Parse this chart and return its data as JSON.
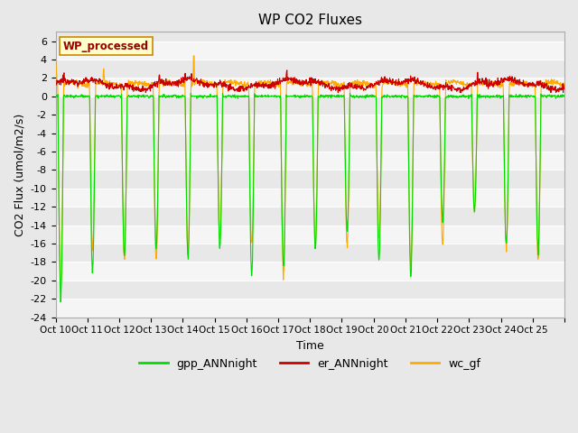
{
  "title": "WP CO2 Fluxes",
  "xlabel": "Time",
  "ylabel": "CO2 Flux (umol/m2/s)",
  "ylim": [
    -24,
    7
  ],
  "yticks": [
    -24,
    -22,
    -20,
    -18,
    -16,
    -14,
    -12,
    -10,
    -8,
    -6,
    -4,
    -2,
    0,
    2,
    4,
    6
  ],
  "fig_facecolor": "#e8e8e8",
  "plot_bg_color": "#e8e8e8",
  "band_color": "#f5f5f5",
  "gpp_color": "#00dd00",
  "er_color": "#cc0000",
  "wc_color": "#ffaa00",
  "legend_box_text": "WP_processed",
  "legend_box_facecolor": "#ffffcc",
  "legend_box_edgecolor": "#cc8800",
  "legend_box_textcolor": "#990000",
  "n_days": 16,
  "points_per_day": 96,
  "xtick_labels": [
    "Oct 10",
    "Oct 11",
    "Oct 12",
    "Oct 13",
    "Oct 14",
    "Oct 15",
    "Oct 16",
    "Oct 17",
    "Oct 18",
    "Oct 19",
    "Oct 20",
    "Oct 21",
    "Oct 22",
    "Oct 23",
    "Oct 24",
    "Oct 25"
  ],
  "grid_color": "#ffffff",
  "line_width": 0.8,
  "dip_depths_wc": [
    -20.5,
    -16.5,
    -17.5,
    -18.0,
    -17.0,
    -15.5,
    -16.2,
    -19.5,
    -16.2,
    -16.2,
    -15.2,
    -18.5,
    -16.2,
    -12.5,
    -16.5,
    -17.5
  ],
  "dip_depths_gpp": [
    -22.0,
    -19.0,
    -17.5,
    -16.5,
    -17.5,
    -16.5,
    -19.5,
    -18.5,
    -16.5,
    -14.5,
    -18.0,
    -19.5,
    -13.5,
    -12.5,
    -16.0,
    -17.0
  ]
}
